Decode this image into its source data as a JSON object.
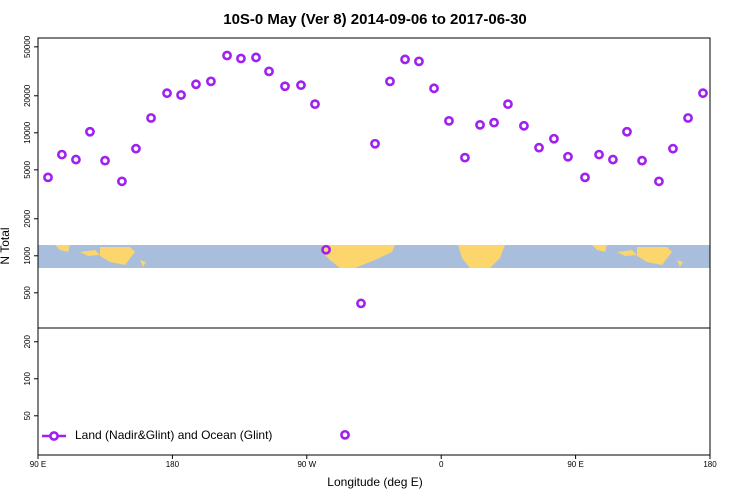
{
  "chart_data": {
    "type": "scatter",
    "title": "10S-0 May (Ver 8)   2014-09-06 to 2017-06-30",
    "x_label": "Longitude (deg E)",
    "y_label": "N Total",
    "xlim": [
      90,
      540
    ],
    "xticks": [
      {
        "value": 90,
        "label": "90 E"
      },
      180,
      {
        "value": 270,
        "label": "90 W"
      },
      {
        "value": 360,
        "label": "0"
      },
      {
        "value": 450,
        "label": "90 E"
      },
      {
        "value": 540,
        "label": "180"
      }
    ],
    "ylim": [
      24,
      59000
    ],
    "yticks": [
      50,
      100,
      200,
      500,
      1000,
      2000,
      5000,
      10000,
      20000,
      50000
    ],
    "log_y": true,
    "legend": "bottom-left",
    "series": [
      {
        "name": "Land (Nadir&Glint) and Ocean (Glint)",
        "color": "#a020f0",
        "x": [
          96.7,
          106,
          115.4,
          124.8,
          134.9,
          146.2,
          155.6,
          165.7,
          176.4,
          185.8,
          195.8,
          205.8,
          216.6,
          225.9,
          236,
          244.7,
          255.4,
          266.1,
          275.5,
          282.9,
          295.6,
          306.3,
          315.7,
          325.7,
          335.8,
          345.1,
          355.2,
          365.2,
          375.9,
          386,
          395.4,
          404.7,
          415.4,
          425.5,
          435.5,
          444.9,
          456.3,
          465.7,
          475,
          484.4,
          494.5,
          505.8,
          515.2,
          525.3,
          535.3
        ],
        "values": [
          4340,
          6650,
          6060,
          10200,
          5940,
          4030,
          7430,
          13200,
          21000,
          20300,
          24800,
          26200,
          42500,
          40200,
          41000,
          31600,
          23900,
          24400,
          17100,
          1120,
          35,
          410,
          8150,
          26200,
          39500,
          38100,
          23000,
          12500,
          6280,
          11600,
          12100,
          17100,
          11400,
          7570,
          8950,
          6390,
          4340,
          6650,
          6060,
          10200,
          5940,
          4030,
          7430,
          13200,
          21000
        ]
      }
    ]
  }
}
